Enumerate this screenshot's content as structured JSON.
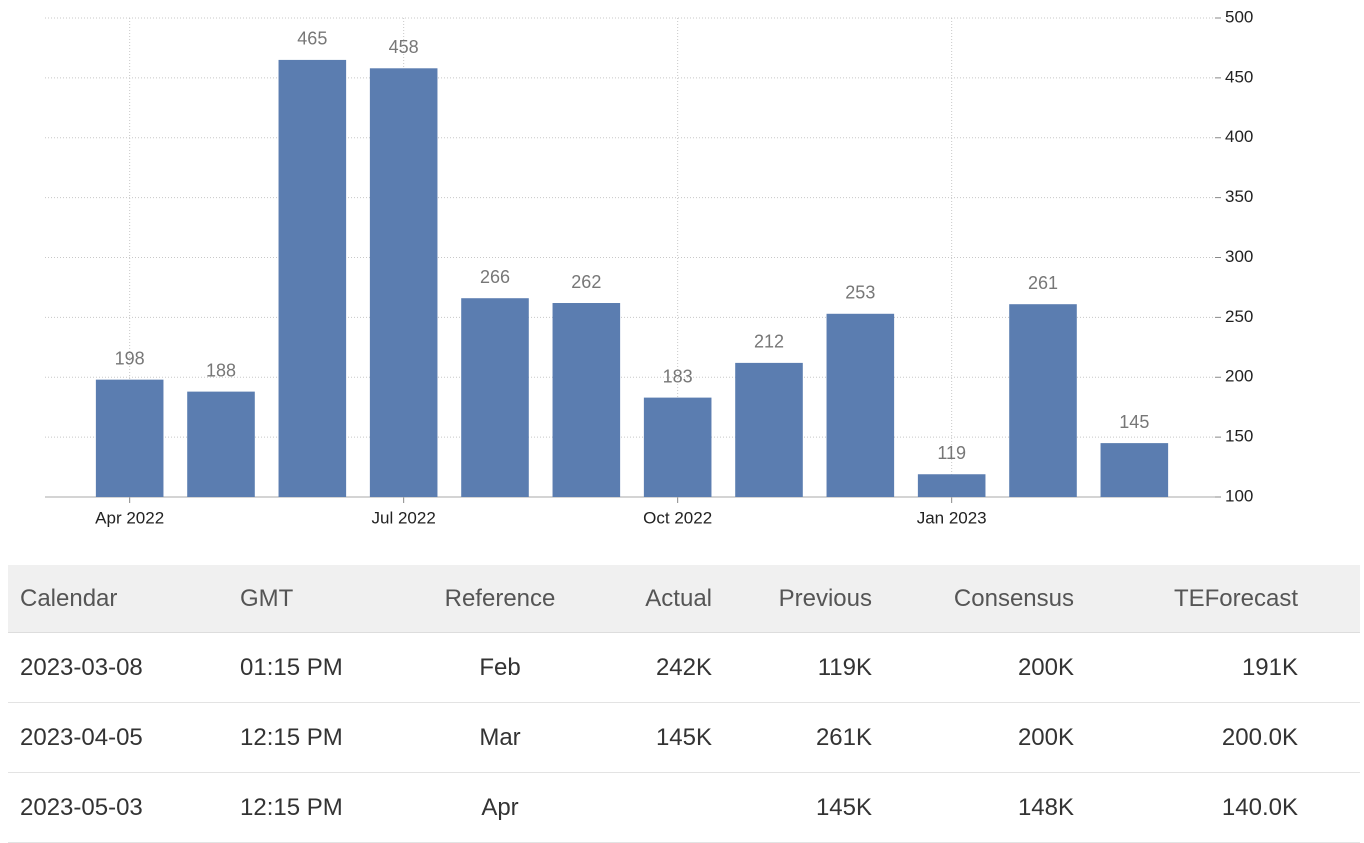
{
  "chart_data": {
    "type": "bar",
    "categories": [
      "Apr 2022",
      null,
      null,
      "Jul 2022",
      null,
      null,
      "Oct 2022",
      null,
      null,
      "Jan 2023",
      null,
      null
    ],
    "values": [
      198,
      188,
      465,
      458,
      266,
      262,
      183,
      212,
      253,
      119,
      261,
      145
    ],
    "color": "#5b7db0",
    "ylim": [
      100,
      500
    ],
    "yticks": [
      100,
      150,
      200,
      250,
      300,
      350,
      400,
      450,
      500
    ],
    "grid": true
  },
  "table": {
    "header": [
      "Calendar",
      "GMT",
      "Reference",
      "Actual",
      "Previous",
      "Consensus",
      "TEForecast"
    ],
    "rows": [
      [
        "2023-03-08",
        "01:15 PM",
        "Feb",
        "242K",
        "119K",
        "200K",
        "191K"
      ],
      [
        "2023-04-05",
        "12:15 PM",
        "Mar",
        "145K",
        "261K",
        "200K",
        "200.0K"
      ],
      [
        "2023-05-03",
        "12:15 PM",
        "Apr",
        null,
        "145K",
        "148K",
        "140.0K"
      ]
    ]
  }
}
